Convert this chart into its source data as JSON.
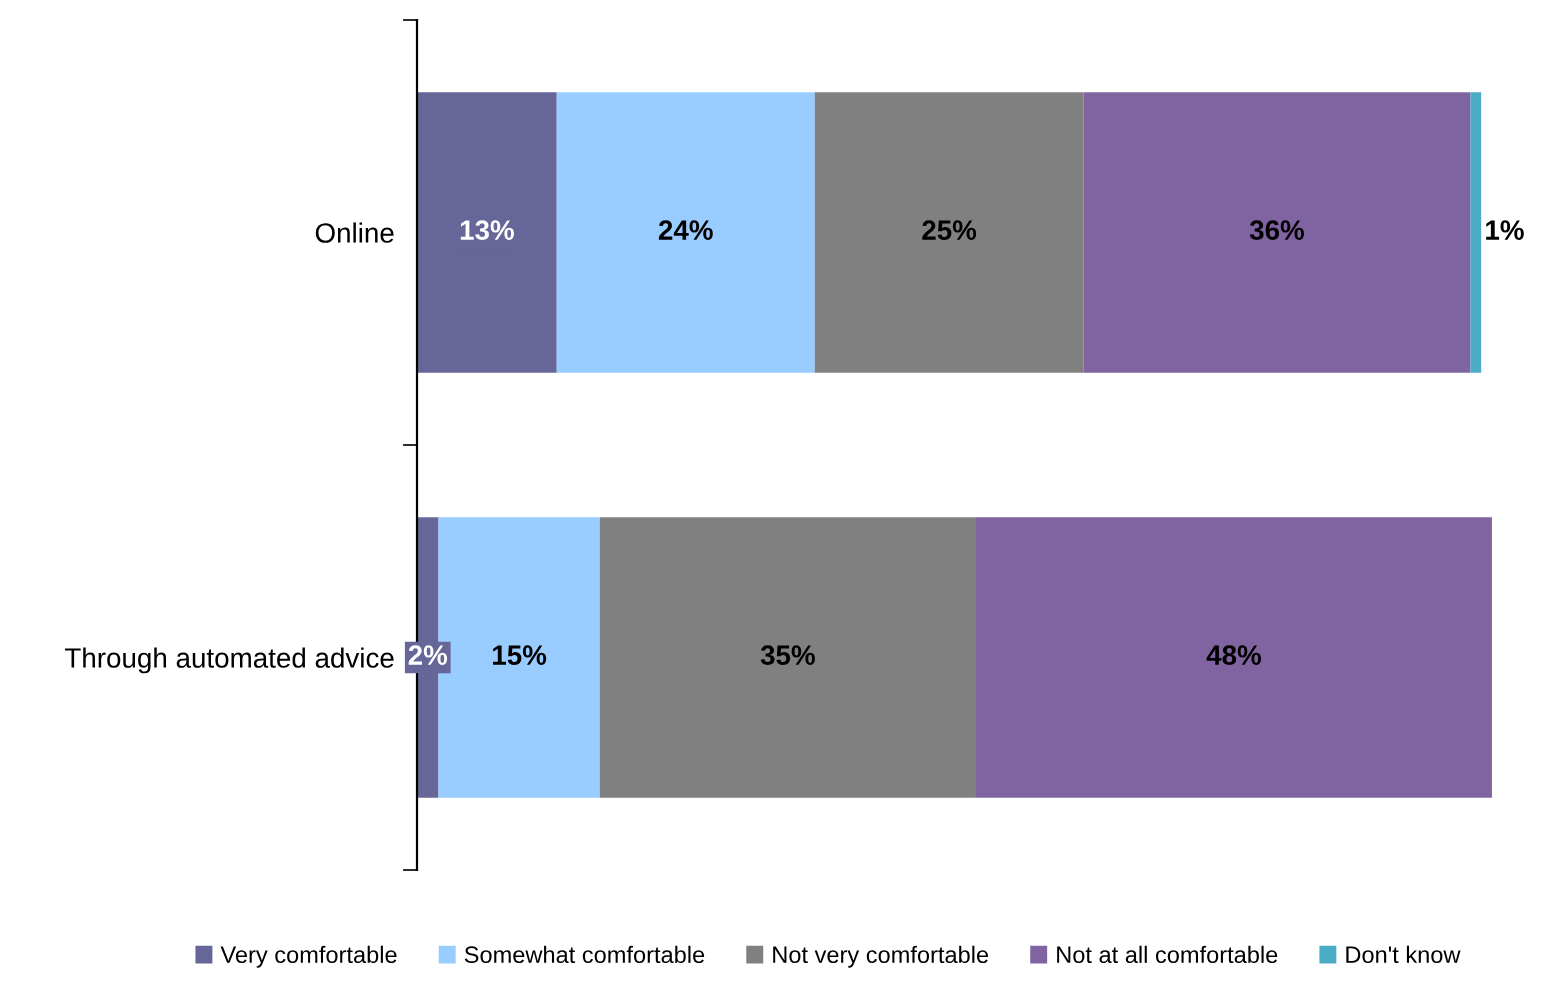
{
  "chart_data": {
    "type": "bar",
    "orientation": "horizontal",
    "stacked": true,
    "categories": [
      "Online",
      "Through automated advice"
    ],
    "series": [
      {
        "name": "Very comfortable",
        "color": "#666699",
        "values": [
          13,
          2
        ],
        "value_labels": [
          "13%",
          "2%"
        ]
      },
      {
        "name": "Somewhat comfortable",
        "color": "#99ccff",
        "values": [
          24,
          15
        ],
        "value_labels": [
          "24%",
          "15%"
        ]
      },
      {
        "name": "Not very comfortable",
        "color": "#808080",
        "values": [
          25,
          35
        ],
        "value_labels": [
          "25%",
          "35%"
        ]
      },
      {
        "name": "Not at all comfortable",
        "color": "#8064a2",
        "values": [
          36,
          48
        ],
        "value_labels": [
          "36%",
          "48%"
        ]
      },
      {
        "name": "Don't know",
        "color": "#4bacc6",
        "values": [
          1,
          null
        ],
        "value_labels": [
          "1%",
          null
        ]
      }
    ],
    "legend": "bottom",
    "grid": false,
    "tick_labels": "y"
  }
}
